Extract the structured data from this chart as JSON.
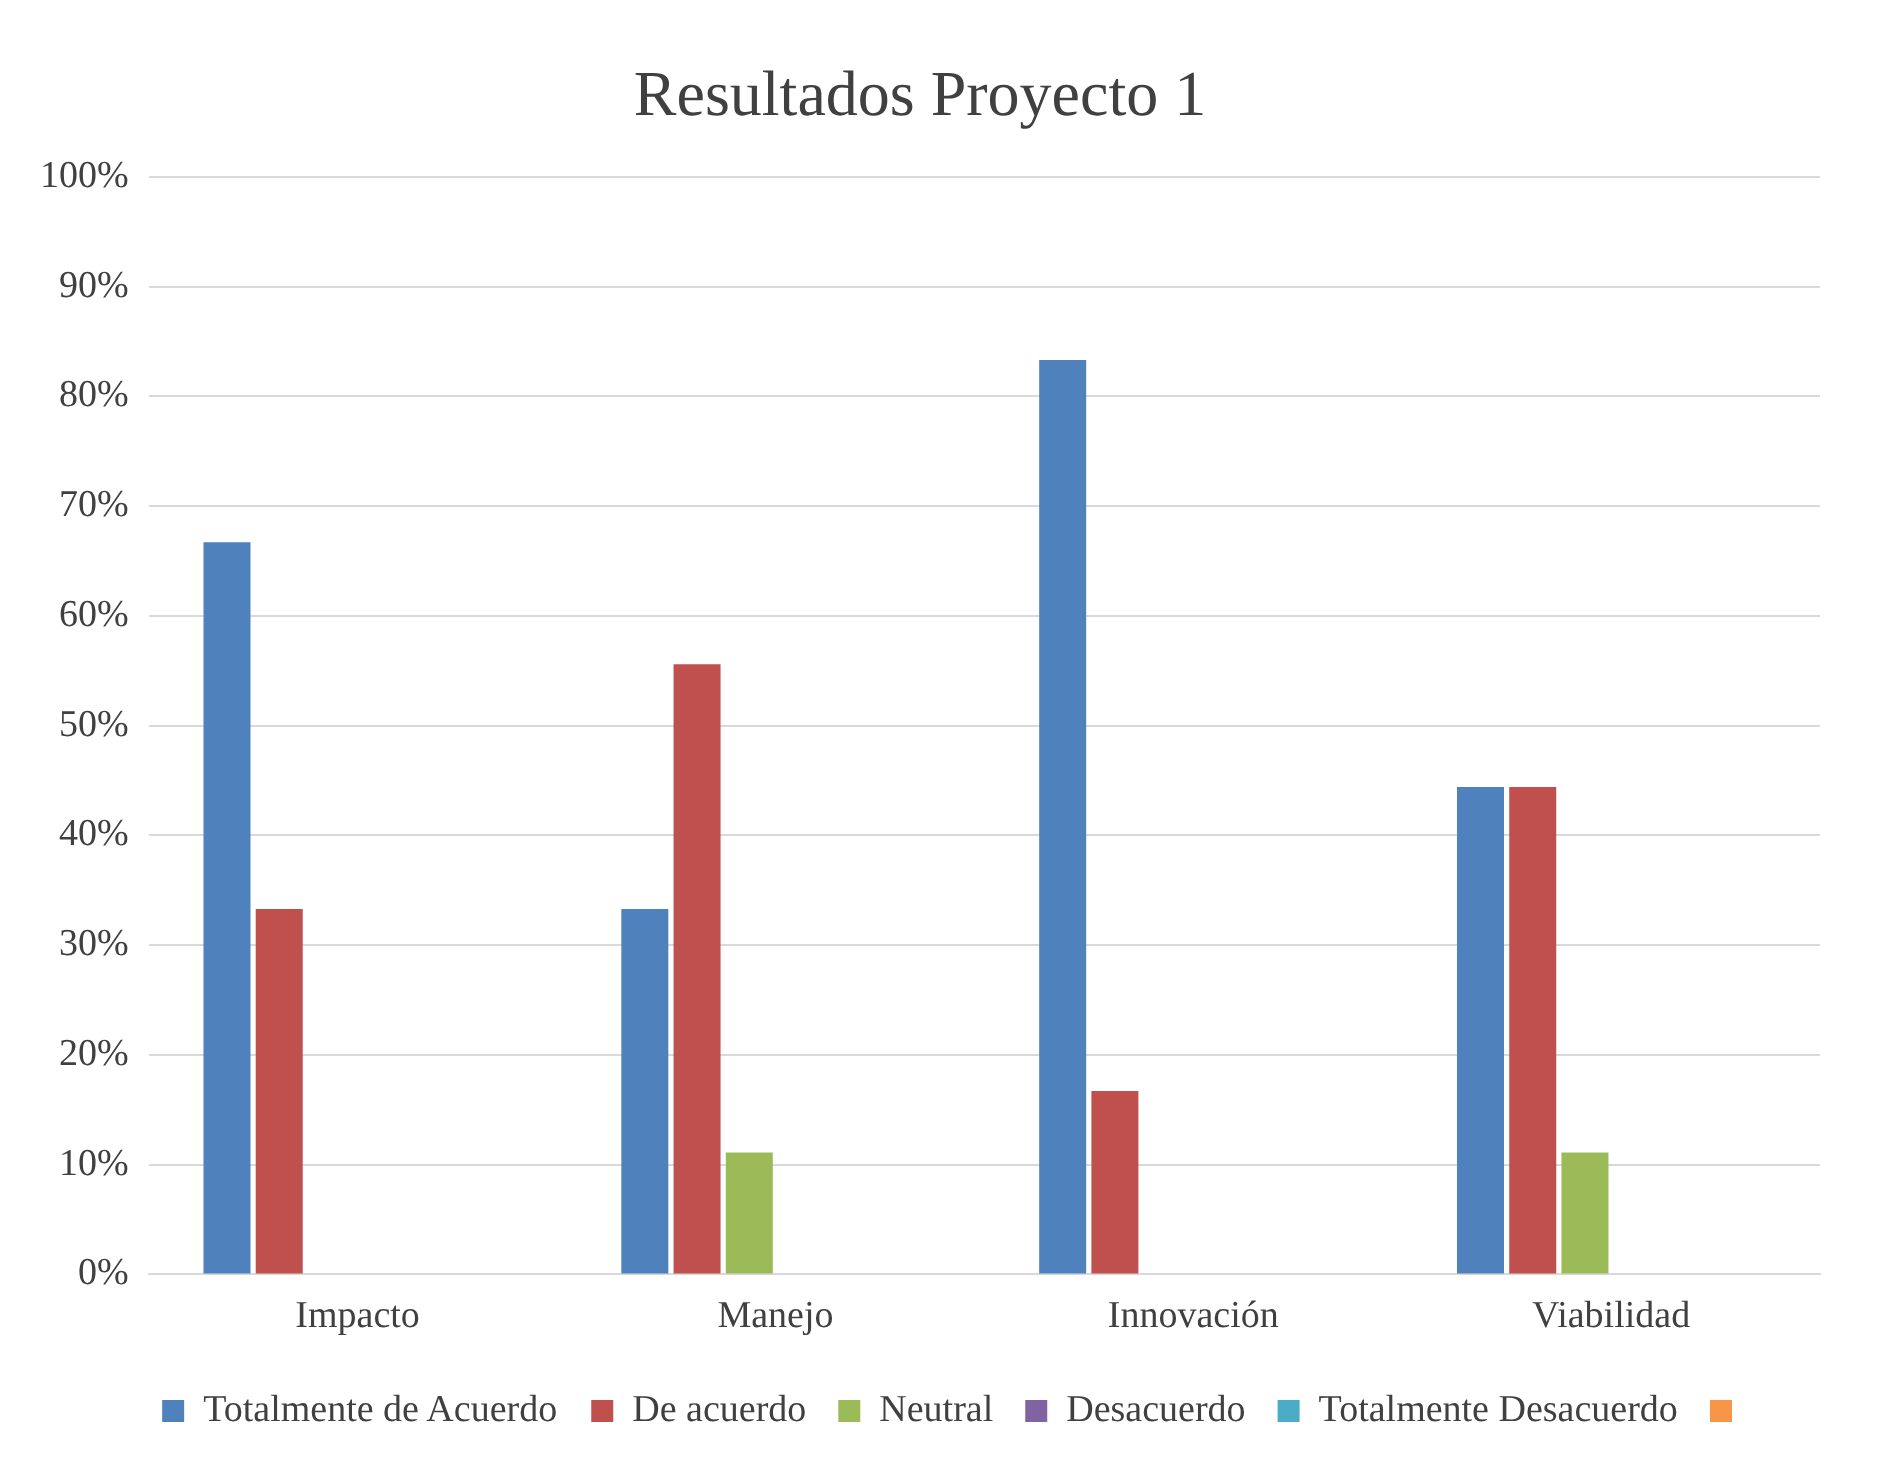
{
  "chart_data": {
    "type": "bar",
    "title": "Resultados Proyecto 1",
    "categories": [
      "Impacto",
      "Manejo",
      "Innovación",
      "Viabilidad"
    ],
    "series": [
      {
        "name": "Totalmente de Acuerdo",
        "color": "#4f81bd",
        "values": [
          66.7,
          33.3,
          83.3,
          44.4
        ]
      },
      {
        "name": "De acuerdo",
        "color": "#c0504d",
        "values": [
          33.3,
          55.6,
          16.7,
          44.4
        ]
      },
      {
        "name": "Neutral",
        "color": "#9bbb59",
        "values": [
          0,
          11.1,
          0,
          11.1
        ]
      },
      {
        "name": "Desacuerdo",
        "color": "#8064a2",
        "values": [
          0,
          0,
          0,
          0
        ]
      },
      {
        "name": "Totalmente Desacuerdo",
        "color": "#4bacc6",
        "values": [
          0,
          0,
          0,
          0
        ]
      },
      {
        "color": "#f79646",
        "values": [
          0,
          0,
          0,
          0
        ]
      }
    ],
    "ylim": [
      0,
      100
    ],
    "yticks": [
      {
        "value": 0,
        "label": "0%"
      },
      {
        "value": 10,
        "label": "10%"
      },
      {
        "value": 20,
        "label": "20%"
      },
      {
        "value": 30,
        "label": "30%"
      },
      {
        "value": 40,
        "label": "40%"
      },
      {
        "value": 50,
        "label": "50%"
      },
      {
        "value": 60,
        "label": "60%"
      },
      {
        "value": 70,
        "label": "70%"
      },
      {
        "value": 80,
        "label": "80%"
      },
      {
        "value": 90,
        "label": "90%"
      },
      {
        "value": 100,
        "label": "100%"
      }
    ],
    "grid": "y",
    "legend": "bottom"
  }
}
